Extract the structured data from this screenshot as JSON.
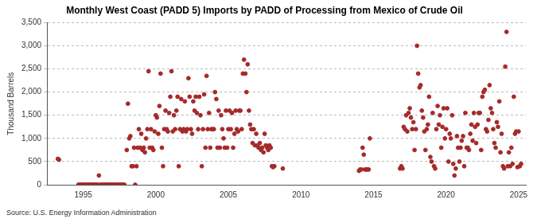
{
  "chart_data": {
    "type": "scatter",
    "title": "Monthly West Coast (PADD 5) Imports by PADD of Processing from Mexico of Crude Oil",
    "y_label": "Thousand Barrels",
    "source": "Source: U.S. Energy Information Administration",
    "color": "#a52a2a",
    "marker": "circle",
    "grid": true,
    "xlim": [
      1992.5,
      2025.5
    ],
    "xticks": [
      1995,
      2000,
      2005,
      2010,
      2015,
      2020,
      2025
    ],
    "ylim": [
      0,
      3500
    ],
    "yticks": [
      0,
      500,
      {
        "value": 1000,
        "label": "1,000"
      },
      {
        "value": 1500,
        "label": "1,500"
      },
      {
        "value": 2000,
        "label": "2,000"
      },
      {
        "value": 2500,
        "label": "2,500"
      },
      {
        "value": 3000,
        "label": "3,000"
      },
      {
        "value": 3500,
        "label": "3,500"
      }
    ],
    "x": [
      1993.25,
      1993.33,
      1994.67,
      1994.75,
      1994.83,
      1994.92,
      1995.0,
      1995.08,
      1995.17,
      1995.25,
      1995.33,
      1995.42,
      1995.5,
      1995.58,
      1995.67,
      1995.75,
      1995.83,
      1995.92,
      1996.0,
      1996.08,
      1996.17,
      1996.25,
      1996.33,
      1996.42,
      1996.5,
      1996.58,
      1996.67,
      1996.75,
      1996.83,
      1996.92,
      1997.0,
      1997.08,
      1997.17,
      1997.25,
      1997.33,
      1997.42,
      1997.5,
      1997.58,
      1997.67,
      1997.75,
      1997.83,
      1998.0,
      1998.08,
      1998.17,
      1998.25,
      1998.33,
      1998.42,
      1998.5,
      1998.58,
      1998.67,
      1998.75,
      1998.83,
      1998.92,
      1999.0,
      1999.08,
      1999.17,
      1999.25,
      1999.33,
      1999.42,
      1999.5,
      1999.58,
      1999.67,
      1999.75,
      1999.83,
      1999.92,
      2000.0,
      2000.08,
      2000.17,
      2000.25,
      2000.33,
      2000.42,
      2000.5,
      2000.58,
      2000.67,
      2000.75,
      2000.83,
      2000.92,
      2001.0,
      2001.08,
      2001.17,
      2001.25,
      2001.33,
      2001.42,
      2001.5,
      2001.58,
      2001.67,
      2001.75,
      2001.83,
      2001.92,
      2002.0,
      2002.08,
      2002.17,
      2002.25,
      2002.33,
      2002.42,
      2002.5,
      2002.58,
      2002.67,
      2002.75,
      2002.83,
      2002.92,
      2003.0,
      2003.08,
      2003.17,
      2003.25,
      2003.33,
      2003.42,
      2003.5,
      2003.58,
      2003.67,
      2003.75,
      2003.83,
      2003.92,
      2004.0,
      2004.08,
      2004.17,
      2004.25,
      2004.33,
      2004.42,
      2004.5,
      2004.58,
      2004.67,
      2004.75,
      2004.83,
      2004.92,
      2005.0,
      2005.08,
      2005.17,
      2005.25,
      2005.33,
      2005.42,
      2005.5,
      2005.58,
      2005.67,
      2005.75,
      2005.83,
      2005.92,
      2006.0,
      2006.08,
      2006.17,
      2006.25,
      2006.33,
      2006.42,
      2006.5,
      2006.58,
      2006.67,
      2006.75,
      2006.83,
      2006.92,
      2007.0,
      2007.08,
      2007.17,
      2007.25,
      2007.33,
      2007.42,
      2007.5,
      2007.58,
      2007.67,
      2007.75,
      2007.83,
      2007.92,
      2008.0,
      2008.08,
      2008.17,
      2008.75,
      2014.0,
      2014.08,
      2014.17,
      2014.25,
      2014.33,
      2014.42,
      2014.5,
      2014.58,
      2014.67,
      2014.75,
      2016.83,
      2016.92,
      2017.0,
      2017.08,
      2017.17,
      2017.25,
      2017.33,
      2017.42,
      2017.5,
      2017.58,
      2017.67,
      2017.75,
      2017.83,
      2017.92,
      2018.0,
      2018.08,
      2018.17,
      2018.25,
      2018.33,
      2018.42,
      2018.5,
      2018.58,
      2018.67,
      2018.75,
      2018.83,
      2018.92,
      2019.0,
      2019.08,
      2019.17,
      2019.25,
      2019.33,
      2019.42,
      2019.5,
      2019.58,
      2019.67,
      2019.75,
      2019.83,
      2019.92,
      2020.0,
      2020.08,
      2020.17,
      2020.25,
      2020.33,
      2020.42,
      2020.5,
      2020.58,
      2020.67,
      2020.75,
      2020.83,
      2020.92,
      2021.0,
      2021.08,
      2021.17,
      2021.25,
      2021.33,
      2021.42,
      2021.5,
      2021.58,
      2021.67,
      2021.75,
      2021.83,
      2021.92,
      2022.0,
      2022.08,
      2022.17,
      2022.25,
      2022.33,
      2022.42,
      2022.5,
      2022.58,
      2022.67,
      2022.75,
      2022.83,
      2022.92,
      2023.0,
      2023.08,
      2023.17,
      2023.25,
      2023.33,
      2023.42,
      2023.5,
      2023.58,
      2023.67,
      2023.75,
      2023.83,
      2023.92,
      2024.0,
      2024.08,
      2024.17,
      2024.25,
      2024.33,
      2024.42,
      2024.5,
      2024.58,
      2024.67,
      2024.75,
      2024.83,
      2024.92,
      2025.0,
      2025.08,
      2025.17
    ],
    "values": [
      560,
      540,
      0,
      0,
      0,
      0,
      0,
      0,
      0,
      0,
      0,
      0,
      0,
      0,
      0,
      0,
      0,
      0,
      0,
      200,
      0,
      0,
      0,
      0,
      0,
      0,
      0,
      0,
      0,
      0,
      0,
      0,
      0,
      0,
      0,
      0,
      0,
      0,
      0,
      0,
      0,
      750,
      1750,
      1000,
      1050,
      400,
      400,
      800,
      0,
      400,
      800,
      1200,
      800,
      1100,
      750,
      800,
      700,
      1000,
      1200,
      2450,
      800,
      1200,
      800,
      750,
      1150,
      1500,
      1450,
      1100,
      1700,
      2400,
      800,
      400,
      1200,
      1600,
      1200,
      1150,
      1550,
      1900,
      2450,
      1150,
      1500,
      1200,
      1600,
      1900,
      400,
      1200,
      1850,
      1150,
      1200,
      1800,
      1150,
      1200,
      2300,
      1900,
      1200,
      1100,
      1800,
      1600,
      1900,
      1550,
      1200,
      1900,
      1500,
      400,
      1200,
      1950,
      800,
      2350,
      1200,
      1550,
      800,
      1200,
      1200,
      1200,
      2000,
      1850,
      800,
      1600,
      800,
      1500,
      1200,
      1000,
      800,
      1600,
      800,
      1200,
      1600,
      1200,
      1550,
      800,
      1100,
      1600,
      1200,
      1150,
      1600,
      1600,
      1200,
      2400,
      2700,
      2400,
      2000,
      2600,
      1600,
      1300,
      1200,
      900,
      1200,
      850,
      1100,
      850,
      800,
      900,
      750,
      800,
      700,
      1100,
      850,
      800,
      750,
      850,
      800,
      400,
      380,
      400,
      350,
      300,
      330,
      330,
      800,
      650,
      330,
      330,
      330,
      330,
      1000,
      350,
      400,
      350,
      1250,
      1200,
      1500,
      1150,
      1550,
      1650,
      1450,
      1200,
      1350,
      750,
      1200,
      3000,
      2400,
      2100,
      2150,
      1600,
      1450,
      1150,
      750,
      1200,
      1300,
      1900,
      600,
      500,
      1550,
      400,
      350,
      1200,
      1700,
      1300,
      1500,
      800,
      1250,
      1650,
      1000,
      1200,
      1650,
      500,
      1100,
      1000,
      1500,
      450,
      200,
      350,
      1050,
      800,
      500,
      800,
      950,
      1050,
      400,
      1550,
      800,
      800,
      750,
      1100,
      1300,
      950,
      1550,
      1250,
      900,
      1300,
      1550,
      1550,
      750,
      1900,
      2000,
      2050,
      1200,
      1150,
      1400,
      2150,
      1650,
      1550,
      1200,
      900,
      800,
      1350,
      1250,
      1800,
      700,
      1100,
      400,
      350,
      2550,
      3300,
      400,
      700,
      400,
      800,
      450,
      1900,
      1100,
      1150,
      380,
      1150,
      400,
      450
    ]
  }
}
